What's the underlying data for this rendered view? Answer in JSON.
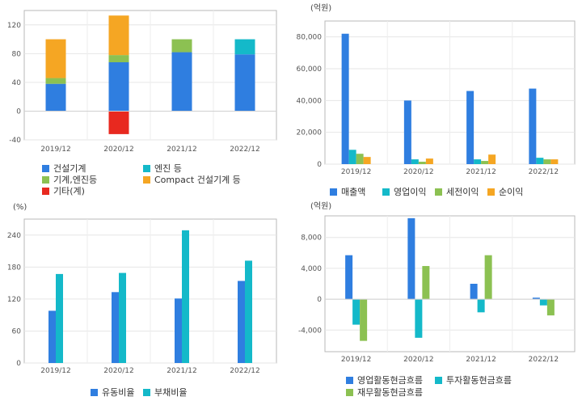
{
  "chart_data": [
    {
      "type": "bar",
      "stacked": true,
      "categories": [
        "2019/12",
        "2020/12",
        "2021/12",
        "2022/12"
      ],
      "series": [
        {
          "name": "건설기계",
          "color": "#2f7ee0",
          "values": [
            38,
            68,
            82,
            79
          ]
        },
        {
          "name": "엔진 등",
          "color": "#14b9c9",
          "values": [
            0,
            0,
            0,
            21
          ]
        },
        {
          "name": "기계,엔진등",
          "color": "#8cc152",
          "values": [
            8,
            10,
            18,
            0
          ]
        },
        {
          "name": "Compact 건설기계 등",
          "color": "#f5a623",
          "values": [
            54,
            55,
            0,
            0
          ]
        },
        {
          "name": "기타(계)",
          "color": "#e8291f",
          "values": [
            0,
            -32,
            0,
            0
          ]
        }
      ],
      "ylim": [
        -40,
        140
      ],
      "yticks": [
        "-40",
        "0",
        "40",
        "80",
        "120"
      ],
      "ytick_values": [
        -40,
        0,
        40,
        80,
        120
      ],
      "unit": "",
      "grid": true,
      "legend_position": "bottom"
    },
    {
      "type": "bar",
      "categories": [
        "2019/12",
        "2020/12",
        "2021/12",
        "2022/12"
      ],
      "series": [
        {
          "name": "매출액",
          "color": "#2f7ee0",
          "values": [
            82000,
            40000,
            46000,
            47500
          ]
        },
        {
          "name": "영업이익",
          "color": "#14b9c9",
          "values": [
            9000,
            3000,
            3000,
            4000
          ]
        },
        {
          "name": "세전이익",
          "color": "#8cc152",
          "values": [
            6500,
            1500,
            2000,
            3000
          ]
        },
        {
          "name": "순이익",
          "color": "#f5a623",
          "values": [
            4500,
            3500,
            6000,
            3000
          ]
        }
      ],
      "ylim": [
        0,
        90000
      ],
      "yticks": [
        "0",
        "20,000",
        "40,000",
        "60,000",
        "80,000"
      ],
      "ytick_values": [
        0,
        20000,
        40000,
        60000,
        80000
      ],
      "unit": "(억원)",
      "grid": true,
      "legend_position": "bottom"
    },
    {
      "type": "bar",
      "categories": [
        "2019/12",
        "2020/12",
        "2021/12",
        "2022/12"
      ],
      "series": [
        {
          "name": "유동비율",
          "color": "#2f7ee0",
          "values": [
            98,
            133,
            121,
            154
          ]
        },
        {
          "name": "부채비율",
          "color": "#14b9c9",
          "values": [
            167,
            169,
            249,
            192
          ]
        }
      ],
      "ylim": [
        0,
        270
      ],
      "yticks": [
        "0",
        "60",
        "120",
        "180",
        "240"
      ],
      "ytick_values": [
        0,
        60,
        120,
        180,
        240
      ],
      "unit": "(%)",
      "grid": true,
      "legend_position": "bottom"
    },
    {
      "type": "bar",
      "categories": [
        "2019/12",
        "2020/12",
        "2021/12",
        "2022/12"
      ],
      "series": [
        {
          "name": "영업활동현금흐름",
          "color": "#2f7ee0",
          "values": [
            5700,
            10500,
            2000,
            200
          ]
        },
        {
          "name": "투자활동현금흐름",
          "color": "#14b9c9",
          "values": [
            -3300,
            -5000,
            -1700,
            -800
          ]
        },
        {
          "name": "재무활동현금흐름",
          "color": "#8cc152",
          "values": [
            -5400,
            4300,
            5700,
            -2100
          ]
        }
      ],
      "ylim": [
        -6800,
        10800
      ],
      "yticks": [
        "-4,000",
        "0",
        "4,000",
        "8,000"
      ],
      "ytick_values": [
        -4000,
        0,
        4000,
        8000
      ],
      "unit": "(억원)",
      "grid": true,
      "legend_position": "bottom"
    }
  ]
}
